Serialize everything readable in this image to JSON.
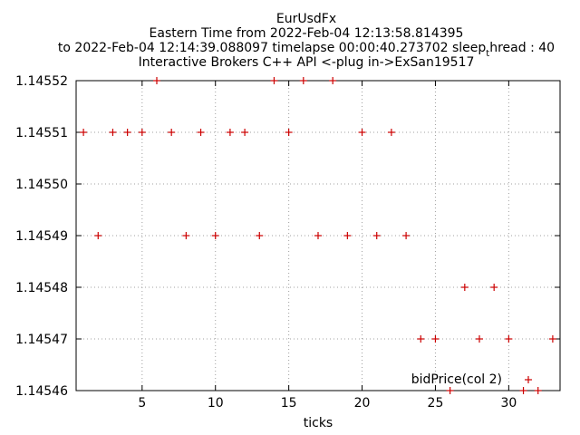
{
  "chart_data": {
    "type": "scatter",
    "title": [
      "EurUsdFx",
      "Eastern Time from 2022-Feb-04 12:13:58.814395",
      "to 2022-Feb-04 12:14:39.088097 timelapse  00:00:40.273702  sleep",
      "Interactive Brokers C++ API <-plug in->ExSan19517"
    ],
    "title_line3_sub": "t",
    "title_line3_tail": "hread : 40",
    "xlabel": "ticks",
    "ylabel": "",
    "xlim": [
      0.5,
      33.5
    ],
    "ylim": [
      1.14546,
      1.14552
    ],
    "xticks": [
      5,
      10,
      15,
      20,
      25,
      30
    ],
    "yticks": [
      "1.14546",
      "1.14547",
      "1.14548",
      "1.14549",
      "1.14550",
      "1.14551",
      "1.14552"
    ],
    "grid": true,
    "legend_position": "bottom-right",
    "series": [
      {
        "name": "bidPrice(col 2)",
        "color": "#cc0000",
        "marker": "plus",
        "x": [
          1,
          2,
          3,
          4,
          5,
          6,
          7,
          8,
          9,
          10,
          11,
          12,
          13,
          14,
          15,
          16,
          17,
          18,
          19,
          20,
          21,
          22,
          23,
          24,
          25,
          26,
          27,
          28,
          29,
          30,
          31,
          32,
          33
        ],
        "y": [
          1.14551,
          1.14549,
          1.14551,
          1.14551,
          1.14551,
          1.14552,
          1.14551,
          1.14549,
          1.14551,
          1.14549,
          1.14551,
          1.14551,
          1.14549,
          1.14552,
          1.14551,
          1.14552,
          1.14549,
          1.14552,
          1.14549,
          1.14551,
          1.14549,
          1.14551,
          1.14549,
          1.14547,
          1.14547,
          1.14546,
          1.14548,
          1.14547,
          1.14548,
          1.14547,
          1.14546,
          1.14546,
          1.14547
        ]
      }
    ]
  }
}
